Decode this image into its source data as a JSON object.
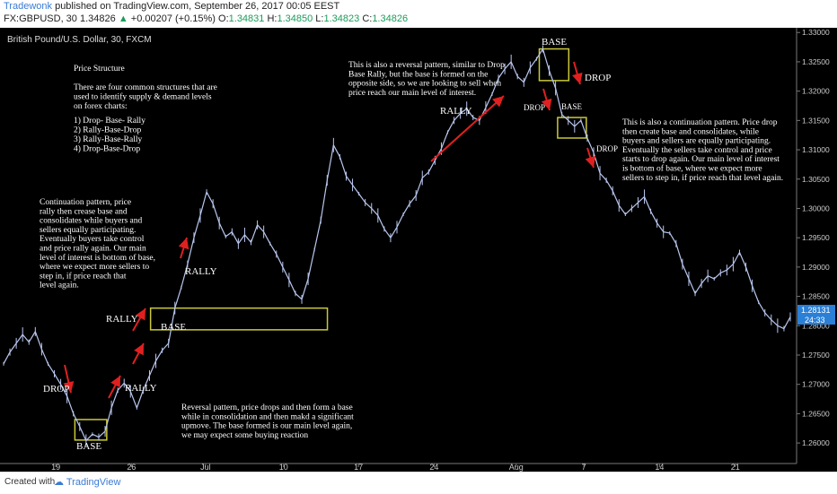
{
  "header": {
    "author": "Tradewonk",
    "published": " published on TradingView.com, September 26, 2017 00:05 EEST",
    "symbol_line": "FX:GBPUSD, 30",
    "last": "1.34826",
    "change": "+0.00207 (+0.15%)",
    "o_label": "O:",
    "o": "1.34831",
    "h_label": "H:",
    "h": "1.34850",
    "l_label": "L:",
    "l": "1.34823",
    "c_label": "C:",
    "c": "1.34826"
  },
  "footer": {
    "created": "Created with",
    "brand": "TradingView"
  },
  "colors": {
    "background": "#000000",
    "candles": "#b9c7ef",
    "zone": "#c9c93a",
    "arrow": "#e02020",
    "price_tag_bg": "#2a7fd6"
  },
  "chart_data": {
    "type": "line",
    "title": "British Pound/U.S. Dollar, 30, FXCM",
    "x_ticks": [
      "19",
      "26",
      "Jul",
      "10",
      "17",
      "24",
      "Aug",
      "7",
      "14",
      "21"
    ],
    "y_ticks": [
      "1.33000",
      "1.32500",
      "1.32000",
      "1.31500",
      "1.31000",
      "1.30500",
      "1.30000",
      "1.29500",
      "1.29000",
      "1.28500",
      "1.28000",
      "1.27500",
      "1.27000",
      "1.26500",
      "1.26000"
    ],
    "ylim": [
      1.2565,
      1.3308
    ],
    "last_price": "1.28131",
    "countdown": "24:33",
    "series": [
      {
        "values": [
          1.2735,
          1.2755,
          1.277,
          1.2785,
          1.2772,
          1.279,
          1.276,
          1.2735,
          1.2718,
          1.27,
          1.268,
          1.265,
          1.2628,
          1.2604,
          1.2615,
          1.261,
          1.262,
          1.266,
          1.269,
          1.2702,
          1.2688,
          1.266,
          1.269,
          1.2715,
          1.274,
          1.2758,
          1.277,
          1.283,
          1.2865,
          1.2905,
          1.295,
          1.2988,
          1.3028,
          1.3008,
          1.2975,
          1.2952,
          1.296,
          1.294,
          1.2955,
          1.2942,
          1.2972,
          1.296,
          1.294,
          1.2922,
          1.29,
          1.2878,
          1.2855,
          1.2845,
          1.288,
          1.293,
          1.298,
          1.3048,
          1.3108,
          1.3088,
          1.3055,
          1.304,
          1.3025,
          1.301,
          1.3,
          1.2988,
          1.2965,
          1.295,
          1.2968,
          1.299,
          1.3008,
          1.3022,
          1.3052,
          1.3062,
          1.3082,
          1.3102,
          1.313,
          1.315,
          1.3162,
          1.317,
          1.3155,
          1.315,
          1.3172,
          1.3195,
          1.3222,
          1.3238,
          1.325,
          1.3225,
          1.3215,
          1.324,
          1.3255,
          1.3272,
          1.3235,
          1.3205,
          1.316,
          1.315,
          1.314,
          1.315,
          1.312,
          1.3095,
          1.306,
          1.3048,
          1.303,
          1.3005,
          1.299,
          1.3,
          1.301,
          1.302,
          1.2995,
          1.2975,
          1.296,
          1.2958,
          1.294,
          1.2905,
          1.288,
          1.2855,
          1.2872,
          1.2885,
          1.288,
          1.289,
          1.2895,
          1.2905,
          1.2925,
          1.29,
          1.2868,
          1.284,
          1.2822,
          1.281,
          1.28,
          1.2795,
          1.2815
        ]
      }
    ],
    "zones": [
      {
        "label": "BASE",
        "x0": 0.094,
        "x1": 0.134,
        "y0": 1.2605,
        "y1": 1.264
      },
      {
        "label": "BASE",
        "x0": 0.189,
        "x1": 0.411,
        "y0": 1.2793,
        "y1": 1.283
      },
      {
        "label": "BASE",
        "x0": 0.677,
        "x1": 0.714,
        "y0": 1.3218,
        "y1": 1.3272
      },
      {
        "label": "BASE",
        "x0": 0.7,
        "x1": 0.736,
        "y0": 1.312,
        "y1": 1.3155
      }
    ],
    "annotations": {
      "price_structure": {
        "title": "Price Structure",
        "body": [
          "There are four common structures that are",
          "used to identify supply & demand levels",
          "on forex charts:"
        ],
        "items": [
          "1) Drop- Base- Rally",
          "2) Rally-Base-Drop",
          "3) Rally-Base-Rally",
          "4) Drop-Base-Drop"
        ]
      },
      "continuation_rbr": [
        "Continuation pattern, price",
        "rally then crease base and",
        "consolidates while buyers and",
        "sellers equally participating.",
        "Eventually buyers take control",
        "and price rally again. Our main",
        "level of interest is bottom of base,",
        "where we expect more sellers to",
        "step in, if price reach that",
        "level again."
      ],
      "reversal_dbr": [
        "Reversal pattern, price drops and then form a base",
        "while in consolidation and then makd a significant",
        "upmove. The base formed is our main level again,",
        "we may expect some buying reaction"
      ],
      "reversal_rbd": [
        "This is also a reversal pattern, similar to Drop",
        "Base Rally, but the base is formed on the",
        "opposite side, so we are looking to sell when",
        "price reach our main level of interest."
      ],
      "continuation_dbd": [
        "This is also a continuation pattern. Price drop",
        "then create base and consolidates, while",
        "buyers and sellers are equally participating.",
        "Eventually the sellers take control and price",
        "starts to drop again. Our main level of interest",
        "is bottom of base, where we expect more",
        "sellers to step in, if price reach that level again."
      ]
    },
    "labels": {
      "drop1": "DROP",
      "base1": "BASE",
      "rally1": "RALLY",
      "rally2": "RALLY",
      "base2": "BASE",
      "rally3": "RALLY",
      "rally4": "RALLY",
      "base3": "BASE",
      "drop2": "DROP",
      "drop3": "DROP",
      "base4": "BASE",
      "drop4": "DROP"
    }
  }
}
